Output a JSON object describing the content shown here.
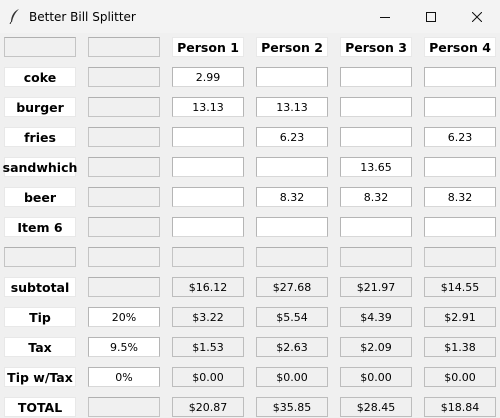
{
  "window": {
    "title": "Better Bill Splitter"
  },
  "people": [
    "Person 1",
    "Person 2",
    "Person 3",
    "Person 4"
  ],
  "items": [
    {
      "name": "coke",
      "values": [
        "2.99",
        "",
        "",
        ""
      ]
    },
    {
      "name": "burger",
      "values": [
        "13.13",
        "13.13",
        "",
        ""
      ]
    },
    {
      "name": "fries",
      "values": [
        "",
        "6.23",
        "",
        "6.23"
      ]
    },
    {
      "name": "sandwhich",
      "values": [
        "",
        "",
        "13.65",
        ""
      ]
    },
    {
      "name": "beer",
      "values": [
        "",
        "8.32",
        "8.32",
        "8.32"
      ]
    },
    {
      "name": "Item 6",
      "values": [
        "",
        "",
        "",
        ""
      ]
    }
  ],
  "summary": [
    {
      "label": "subtotal",
      "rate": "",
      "rate_editable": false,
      "values": [
        "$16.12",
        "$27.68",
        "$21.97",
        "$14.55"
      ]
    },
    {
      "label": "Tip",
      "rate": "20%",
      "rate_editable": true,
      "values": [
        "$3.22",
        "$5.54",
        "$4.39",
        "$2.91"
      ]
    },
    {
      "label": "Tax",
      "rate": "9.5%",
      "rate_editable": true,
      "values": [
        "$1.53",
        "$2.63",
        "$2.09",
        "$1.38"
      ]
    },
    {
      "label": "Tip w/Tax",
      "rate": "0%",
      "rate_editable": true,
      "values": [
        "$0.00",
        "$0.00",
        "$0.00",
        "$0.00"
      ]
    },
    {
      "label": "TOTAL",
      "rate": "",
      "rate_editable": false,
      "values": [
        "$20.87",
        "$35.85",
        "$28.45",
        "$18.84"
      ]
    }
  ]
}
